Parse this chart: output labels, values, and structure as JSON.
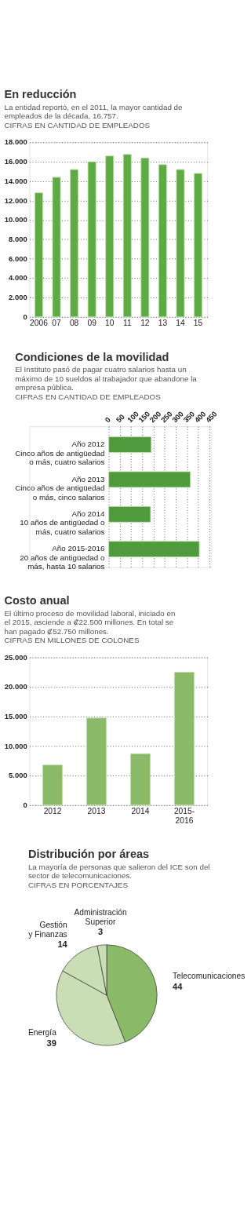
{
  "chart_data": [
    {
      "type": "bar",
      "title": "En reducción",
      "subtitle": "La entidad reportó, en el 2011, la mayor cantidad de empleados de la década, 16.757.",
      "annotations": [
        "CIFRAS EN CANTIDAD DE EMPLEADOS"
      ],
      "categories": [
        "2006",
        "07",
        "08",
        "09",
        "10",
        "11",
        "12",
        "13",
        "14",
        "15"
      ],
      "values": [
        12800,
        14400,
        15200,
        16000,
        16600,
        16757,
        16400,
        15700,
        15200,
        14800
      ],
      "color": "#5eab46",
      "ylim": [
        0,
        18000
      ],
      "yticks": [
        0,
        {
          "value": 2000,
          "label": "2.000"
        },
        {
          "value": 4000,
          "label": "4.000"
        },
        {
          "value": 6000,
          "label": "6.000"
        },
        {
          "value": 8000,
          "label": "8.000"
        },
        {
          "value": 10000,
          "label": "10.000"
        },
        {
          "value": 12000,
          "label": "12.000"
        },
        {
          "value": 14000,
          "label": "14.000"
        },
        {
          "value": 16000,
          "label": "16.000"
        },
        {
          "value": 18000,
          "label": "18.000"
        }
      ],
      "grid": "y"
    },
    {
      "type": "bar",
      "orientation": "horizontal",
      "title": "Condiciones de la movilidad",
      "subtitle": "El Instituto pasó de pagar cuatro salarios hasta un máximo de 10 sueldos al trabajador que abandone la empresa pública.",
      "annotations": [
        "CIFRAS EN CANTIDAD DE EMPLEADOS"
      ],
      "categories": [
        "Año 2012\nCinco años de antigüedad\no más, cuatro salarios",
        "Año 2013\nCinco años de antigüedad\no más, cinco salarios",
        "Año 2014\n10 años de antigüedad o\nmás, cuatro salarios",
        "Año 2015-2016\n20 años de antigüedad o\nmás, hasta 10 salarios"
      ],
      "values": [
        190,
        365,
        187,
        405
      ],
      "color": "#4f9a3c",
      "xlim": [
        0,
        450
      ],
      "xticks": [
        0,
        50,
        100,
        150,
        200,
        250,
        300,
        350,
        400,
        450
      ],
      "grid": "x"
    },
    {
      "type": "bar",
      "title": "Costo anual",
      "subtitle": "El último proceso de movilidad laboral, iniciado en el 2015, asciende a ₡22.500 millones. En total se han pagado ₡52.750 millones.",
      "annotations": [
        "CIFRAS EN MILLONES DE COLONES"
      ],
      "categories": [
        "2012",
        "2013",
        "2014",
        "2015-2016"
      ],
      "values": [
        6800,
        14750,
        8700,
        22500
      ],
      "color": "#8aba67",
      "ylim": [
        0,
        25000
      ],
      "yticks": [
        0,
        {
          "value": 5000,
          "label": "5.000"
        },
        {
          "value": 10000,
          "label": "10.000"
        },
        {
          "value": 15000,
          "label": "15.000"
        },
        {
          "value": 20000,
          "label": "20.000"
        },
        {
          "value": 25000,
          "label": "25.000"
        }
      ],
      "grid": "y"
    },
    {
      "type": "pie",
      "title": "Distribución por áreas",
      "subtitle": "La mayoría de personas que salieron del ICE son del sector de telecomunicaciones.",
      "annotations": [
        "CIFRAS EN PORCENTAJES"
      ],
      "categories": [
        "Telecomunicaciones",
        "Energía",
        "Gestión\ny Finanzas",
        "Administración\nSuperior"
      ],
      "values": [
        44,
        39,
        14,
        3
      ],
      "colors": [
        "#8aba67",
        "#c9deb5",
        "#c9deb5",
        "#c9deb5"
      ],
      "data_labels": true
    }
  ]
}
